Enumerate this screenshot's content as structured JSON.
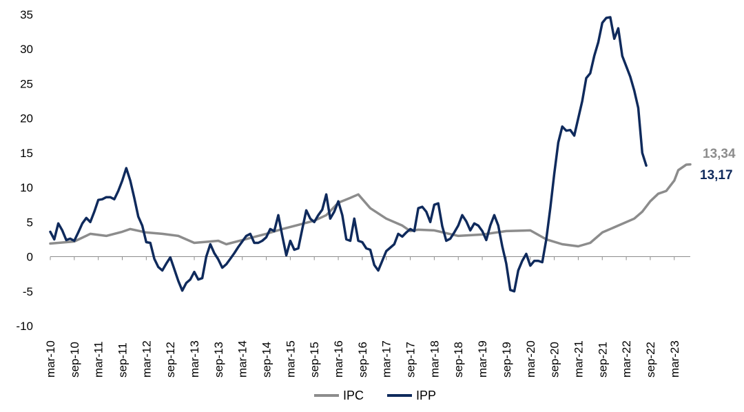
{
  "chart_data": {
    "type": "line",
    "title": "",
    "xlabel": "",
    "ylabel": "",
    "ylim": [
      -10,
      35
    ],
    "yticks": [
      35,
      30,
      25,
      20,
      15,
      10,
      5,
      0,
      -5,
      -10
    ],
    "ytick_labels": [
      "35",
      "30",
      "25",
      "20",
      "15",
      "10",
      "5",
      "0",
      "-5",
      "-10"
    ],
    "x_tick_labels": [
      "mar-10",
      "sep-10",
      "mar-11",
      "sep-11",
      "mar-12",
      "sep-12",
      "mar-13",
      "sep-13",
      "mar-14",
      "sep-14",
      "mar-15",
      "sep-15",
      "mar-16",
      "sep-16",
      "mar-17",
      "sep-17",
      "mar-18",
      "sep-18",
      "mar-19",
      "sep-19",
      "mar-20",
      "sep-20",
      "mar-21",
      "sep-21",
      "mar-22",
      "sep-22",
      "mar-23"
    ],
    "x_tick_month_index": [
      0,
      6,
      12,
      18,
      24,
      30,
      36,
      42,
      48,
      54,
      60,
      66,
      72,
      78,
      84,
      90,
      96,
      102,
      108,
      114,
      120,
      126,
      132,
      138,
      144,
      150,
      156
    ],
    "x_range_month_index": [
      0,
      156
    ],
    "grid": false,
    "legend_position": "bottom-center",
    "colors": {
      "IPC": "#8c8c8c",
      "IPP": "#0f2a5c"
    },
    "series": [
      {
        "name": "IPC",
        "end_label": "13,34",
        "points": [
          [
            0,
            1.9
          ],
          [
            6,
            2.2
          ],
          [
            10,
            3.3
          ],
          [
            14,
            3.0
          ],
          [
            18,
            3.6
          ],
          [
            20,
            4.0
          ],
          [
            24,
            3.5
          ],
          [
            28,
            3.3
          ],
          [
            32,
            3.0
          ],
          [
            36,
            2.0
          ],
          [
            40,
            2.2
          ],
          [
            42,
            2.3
          ],
          [
            44,
            1.8
          ],
          [
            48,
            2.4
          ],
          [
            54,
            3.3
          ],
          [
            58,
            4.0
          ],
          [
            62,
            4.6
          ],
          [
            66,
            5.2
          ],
          [
            69,
            6.0
          ],
          [
            72,
            7.8
          ],
          [
            75,
            8.5
          ],
          [
            77,
            9.0
          ],
          [
            80,
            7.0
          ],
          [
            84,
            5.5
          ],
          [
            88,
            4.5
          ],
          [
            90,
            3.7
          ],
          [
            92,
            3.9
          ],
          [
            96,
            3.8
          ],
          [
            102,
            3.0
          ],
          [
            108,
            3.2
          ],
          [
            114,
            3.7
          ],
          [
            120,
            3.8
          ],
          [
            124,
            2.5
          ],
          [
            128,
            1.8
          ],
          [
            132,
            1.5
          ],
          [
            135,
            2.0
          ],
          [
            138,
            3.5
          ],
          [
            142,
            4.5
          ],
          [
            146,
            5.5
          ],
          [
            148,
            6.5
          ],
          [
            150,
            8.0
          ],
          [
            152,
            9.1
          ],
          [
            154,
            9.5
          ],
          [
            156,
            11.0
          ],
          [
            157,
            12.5
          ],
          [
            159,
            13.3
          ],
          [
            160,
            13.34
          ]
        ]
      },
      {
        "name": "IPP",
        "end_label": "13,17",
        "points": [
          [
            0,
            3.6
          ],
          [
            1,
            2.5
          ],
          [
            2,
            4.8
          ],
          [
            3,
            3.8
          ],
          [
            4,
            2.4
          ],
          [
            5,
            2.6
          ],
          [
            6,
            2.3
          ],
          [
            7,
            3.5
          ],
          [
            8,
            4.8
          ],
          [
            9,
            5.6
          ],
          [
            10,
            5.0
          ],
          [
            11,
            6.5
          ],
          [
            12,
            8.2
          ],
          [
            13,
            8.3
          ],
          [
            14,
            8.6
          ],
          [
            15,
            8.6
          ],
          [
            16,
            8.3
          ],
          [
            17,
            9.5
          ],
          [
            18,
            11.0
          ],
          [
            19,
            12.8
          ],
          [
            20,
            11.0
          ],
          [
            21,
            8.5
          ],
          [
            22,
            5.8
          ],
          [
            23,
            4.5
          ],
          [
            24,
            2.1
          ],
          [
            25,
            2.0
          ],
          [
            26,
            -0.3
          ],
          [
            27,
            -1.5
          ],
          [
            28,
            -2.0
          ],
          [
            29,
            -1.0
          ],
          [
            30,
            -0.1
          ],
          [
            31,
            -1.8
          ],
          [
            32,
            -3.5
          ],
          [
            33,
            -4.9
          ],
          [
            34,
            -3.8
          ],
          [
            35,
            -3.3
          ],
          [
            36,
            -2.2
          ],
          [
            37,
            -3.3
          ],
          [
            38,
            -3.1
          ],
          [
            39,
            0.0
          ],
          [
            40,
            1.8
          ],
          [
            41,
            0.5
          ],
          [
            42,
            -0.4
          ],
          [
            43,
            -1.6
          ],
          [
            44,
            -1.1
          ],
          [
            45,
            -0.3
          ],
          [
            46,
            0.5
          ],
          [
            47,
            1.4
          ],
          [
            48,
            2.2
          ],
          [
            49,
            3.0
          ],
          [
            50,
            3.3
          ],
          [
            51,
            2.0
          ],
          [
            52,
            2.0
          ],
          [
            53,
            2.3
          ],
          [
            54,
            2.8
          ],
          [
            55,
            4.0
          ],
          [
            56,
            3.7
          ],
          [
            57,
            6.0
          ],
          [
            58,
            3.0
          ],
          [
            59,
            0.2
          ],
          [
            60,
            2.3
          ],
          [
            61,
            1.0
          ],
          [
            62,
            1.2
          ],
          [
            63,
            4.0
          ],
          [
            64,
            6.7
          ],
          [
            65,
            5.5
          ],
          [
            66,
            5.0
          ],
          [
            67,
            6.0
          ],
          [
            68,
            6.8
          ],
          [
            69,
            9.0
          ],
          [
            70,
            5.5
          ],
          [
            71,
            6.5
          ],
          [
            72,
            8.0
          ],
          [
            73,
            6.0
          ],
          [
            74,
            2.5
          ],
          [
            75,
            2.3
          ],
          [
            76,
            5.5
          ],
          [
            77,
            2.3
          ],
          [
            78,
            2.1
          ],
          [
            79,
            1.2
          ],
          [
            80,
            1.0
          ],
          [
            81,
            -1.2
          ],
          [
            82,
            -2.0
          ],
          [
            83,
            -0.6
          ],
          [
            84,
            0.8
          ],
          [
            85,
            1.3
          ],
          [
            86,
            1.8
          ],
          [
            87,
            3.3
          ],
          [
            88,
            2.9
          ],
          [
            89,
            3.5
          ],
          [
            90,
            4.0
          ],
          [
            91,
            3.7
          ],
          [
            92,
            7.0
          ],
          [
            93,
            7.2
          ],
          [
            94,
            6.5
          ],
          [
            95,
            5.0
          ],
          [
            96,
            7.5
          ],
          [
            97,
            7.7
          ],
          [
            98,
            4.4
          ],
          [
            99,
            2.3
          ],
          [
            100,
            2.6
          ],
          [
            101,
            3.5
          ],
          [
            102,
            4.5
          ],
          [
            103,
            6.0
          ],
          [
            104,
            5.1
          ],
          [
            105,
            3.8
          ],
          [
            106,
            4.8
          ],
          [
            107,
            4.5
          ],
          [
            108,
            3.7
          ],
          [
            109,
            2.4
          ],
          [
            110,
            4.5
          ],
          [
            111,
            6.0
          ],
          [
            112,
            4.5
          ],
          [
            113,
            1.5
          ],
          [
            114,
            -1.0
          ],
          [
            115,
            -4.8
          ],
          [
            116,
            -5.0
          ],
          [
            117,
            -2.0
          ],
          [
            118,
            -0.6
          ],
          [
            119,
            0.4
          ],
          [
            120,
            -1.3
          ],
          [
            121,
            -0.6
          ],
          [
            122,
            -0.6
          ],
          [
            123,
            -0.8
          ],
          [
            124,
            2.5
          ],
          [
            125,
            7.0
          ],
          [
            126,
            12.0
          ],
          [
            127,
            16.5
          ],
          [
            128,
            18.8
          ],
          [
            129,
            18.2
          ],
          [
            130,
            18.3
          ],
          [
            131,
            17.5
          ],
          [
            132,
            20.0
          ],
          [
            133,
            22.5
          ],
          [
            134,
            25.8
          ],
          [
            135,
            26.5
          ],
          [
            136,
            29.0
          ],
          [
            137,
            31.0
          ],
          [
            138,
            33.8
          ],
          [
            139,
            34.5
          ],
          [
            140,
            34.6
          ],
          [
            141,
            31.5
          ],
          [
            142,
            33.0
          ],
          [
            143,
            29.0
          ],
          [
            144,
            27.5
          ],
          [
            145,
            26.0
          ],
          [
            146,
            24.0
          ],
          [
            147,
            21.5
          ],
          [
            148,
            15.0
          ],
          [
            149,
            13.17
          ]
        ]
      }
    ]
  }
}
